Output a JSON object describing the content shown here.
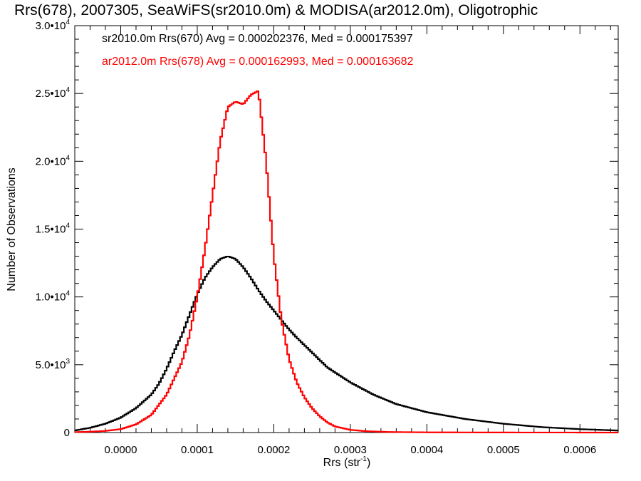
{
  "chart_data": {
    "type": "line",
    "title": "Rrs(678), 2007305, SeaWiFS(sr2010.0m) & MODISA(ar2012.0m), Oligotrophic",
    "xlabel": "Rrs (str",
    "xlabel_sup": "-1",
    "xlabel_end": ")",
    "ylabel": "Number of Observations",
    "xlim": [
      -6e-05,
      0.00065
    ],
    "ylim": [
      0,
      30000
    ],
    "x_ticks": [
      {
        "value": 0.0,
        "label": "0.0000"
      },
      {
        "value": 0.0001,
        "label": "0.0001"
      },
      {
        "value": 0.0002,
        "label": "0.0002"
      },
      {
        "value": 0.0003,
        "label": "0.0003"
      },
      {
        "value": 0.0004,
        "label": "0.0004"
      },
      {
        "value": 0.0005,
        "label": "0.0005"
      },
      {
        "value": 0.0006,
        "label": "0.0006"
      }
    ],
    "y_ticks": [
      {
        "value": 0,
        "label": "0",
        "exp": ""
      },
      {
        "value": 5000,
        "label": "5.0•10",
        "exp": "3"
      },
      {
        "value": 10000,
        "label": "1.0•10",
        "exp": "4"
      },
      {
        "value": 15000,
        "label": "1.5•10",
        "exp": "4"
      },
      {
        "value": 20000,
        "label": "2.0•10",
        "exp": "4"
      },
      {
        "value": 25000,
        "label": "2.5•10",
        "exp": "4"
      },
      {
        "value": 30000,
        "label": "3.0•10",
        "exp": "4"
      }
    ],
    "legend_position": "top-left",
    "series": [
      {
        "name": "sr2010.0m Rrs(670) Avg = 0.000202376, Med = 0.000175397",
        "color": "#000000",
        "x": [
          -6e-05,
          -4e-05,
          -2e-05,
          0.0,
          2e-05,
          4e-05,
          5e-05,
          6e-05,
          7e-05,
          8e-05,
          9e-05,
          0.0001,
          0.00011,
          0.00012,
          0.00013,
          0.00014,
          0.00015,
          0.00016,
          0.00017,
          0.00018,
          0.00019,
          0.0002,
          0.00021,
          0.00022,
          0.00023,
          0.00025,
          0.00027,
          0.0003,
          0.00033,
          0.00036,
          0.0004,
          0.00045,
          0.0005,
          0.00055,
          0.0006,
          0.00065
        ],
        "y": [
          150,
          350,
          650,
          1100,
          1800,
          2800,
          3600,
          4700,
          6000,
          7200,
          8700,
          10200,
          11400,
          12200,
          12800,
          13000,
          12800,
          12200,
          11400,
          10500,
          9700,
          9000,
          8300,
          7600,
          7000,
          5900,
          4800,
          3700,
          2800,
          2100,
          1500,
          1000,
          650,
          400,
          250,
          150
        ]
      },
      {
        "name": "ar2012.0m Rrs(678) Avg = 0.000162993, Med = 0.000163682",
        "color": "#ff0000",
        "x": [
          -6e-05,
          -4e-05,
          -2e-05,
          0.0,
          2e-05,
          4e-05,
          6e-05,
          8e-05,
          9e-05,
          0.0001,
          0.00011,
          0.00012,
          0.00013,
          0.00014,
          0.00015,
          0.00016,
          0.00017,
          0.00018,
          0.00019,
          0.0002,
          0.00021,
          0.00022,
          0.00023,
          0.00024,
          0.00025,
          0.00026,
          0.00027,
          0.00028,
          0.0003,
          0.00032,
          0.00035,
          0.0004,
          0.0005,
          0.00065
        ],
        "y": [
          30,
          60,
          120,
          250,
          600,
          1300,
          2800,
          5200,
          7200,
          10000,
          13500,
          17500,
          21500,
          24000,
          24400,
          24200,
          24900,
          25200,
          20000,
          13000,
          8300,
          5400,
          3700,
          2600,
          1800,
          1200,
          750,
          450,
          200,
          100,
          40,
          15,
          5,
          0
        ]
      }
    ]
  }
}
